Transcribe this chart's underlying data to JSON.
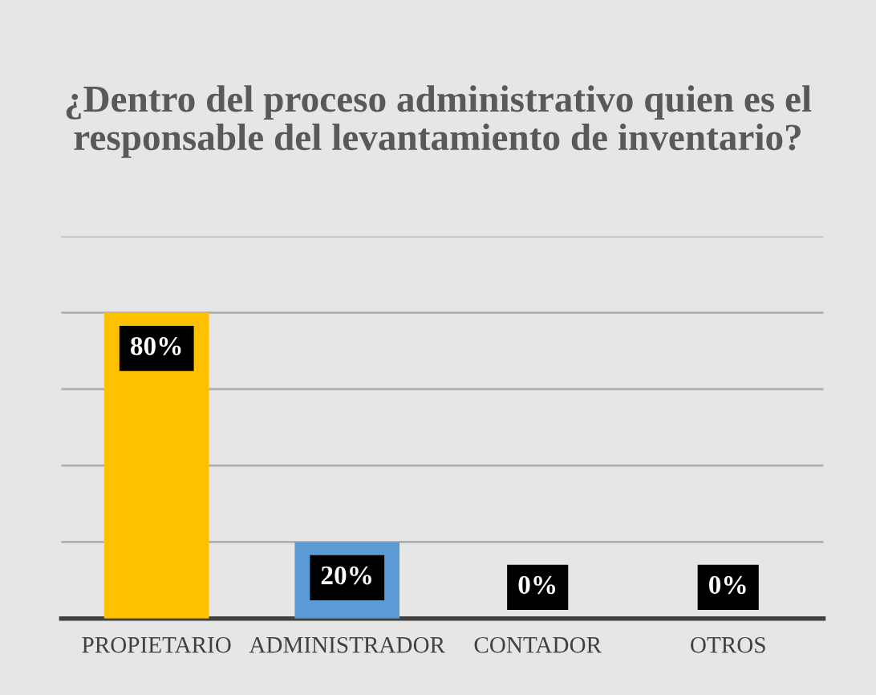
{
  "chart_data": {
    "type": "bar",
    "title": "¿Dentro del proceso administrativo quien es el responsable del levantamiento de inventario?",
    "categories": [
      "PROPIETARIO",
      "ADMINISTRADOR",
      "CONTADOR",
      "OTROS"
    ],
    "values": [
      80,
      20,
      0,
      0
    ],
    "colors": [
      "#ffc000",
      "#5b9bd5",
      "#5b9bd5",
      "#5b9bd5"
    ],
    "value_labels": [
      "80%",
      "20%",
      "0%",
      "0%"
    ],
    "ylim": [
      0,
      100
    ],
    "yticks": [
      {
        "value": 0,
        "label": null
      },
      {
        "value": 20,
        "label": null
      },
      {
        "value": 40,
        "label": null
      },
      {
        "value": 60,
        "label": null
      },
      {
        "value": 80,
        "label": null
      },
      {
        "value": 100,
        "label": null
      }
    ],
    "tick_labels": "x",
    "grid": "y",
    "legend": false
  }
}
